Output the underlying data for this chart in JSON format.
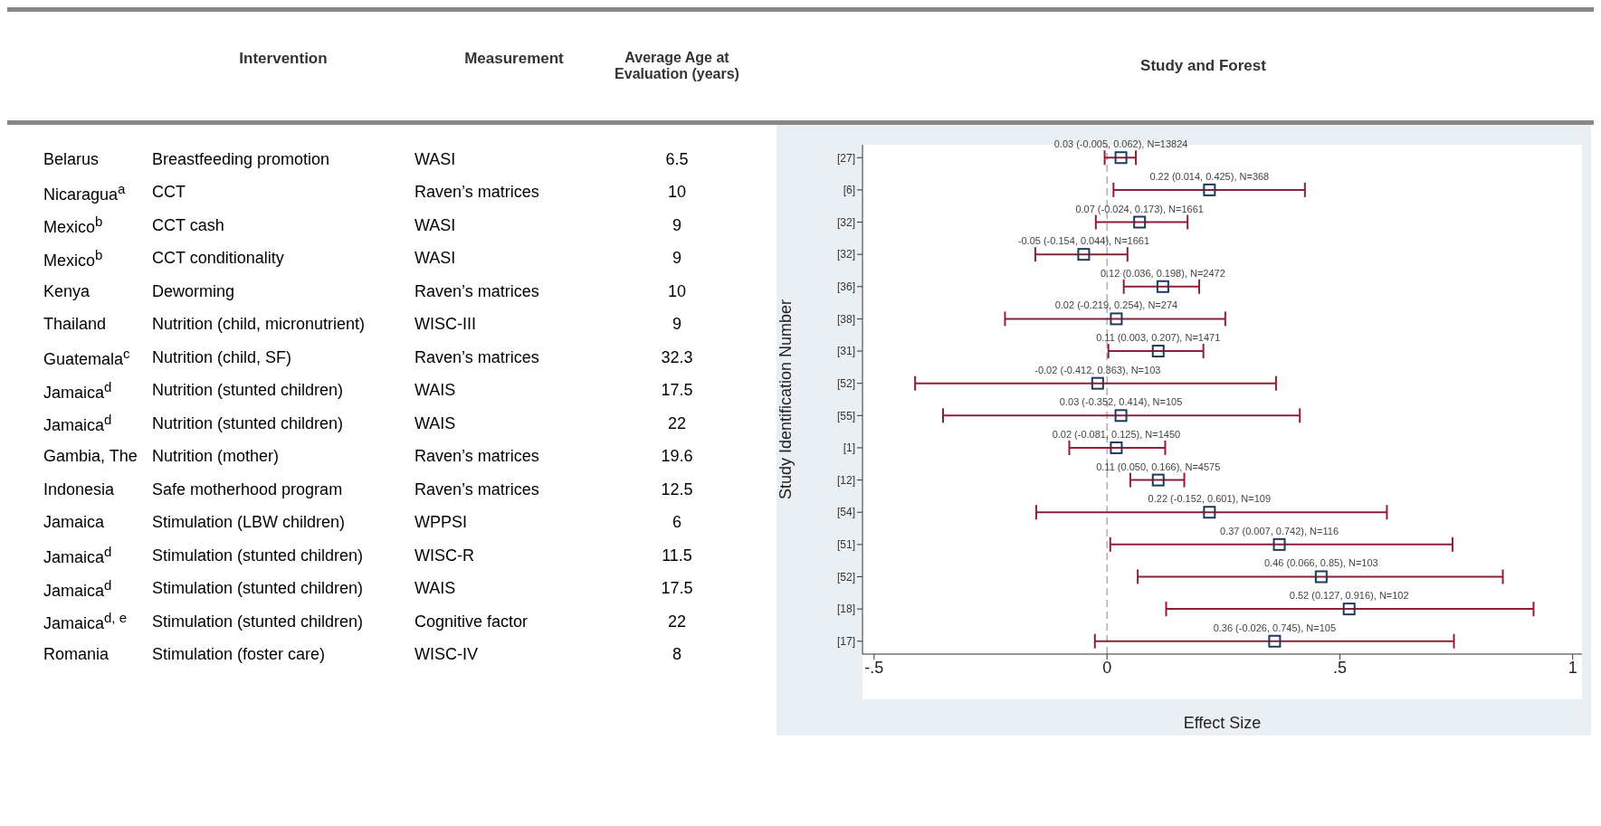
{
  "chart_data": [
    {
      "type": "other",
      "categories": [
        null,
        "Intervention",
        "Measurement",
        "Average Age at Evaluation (years)"
      ],
      "cell_labels": [
        [
          "Belarus",
          "Breastfeeding promotion",
          "WASI",
          "6.5"
        ],
        [
          "Nicaragua$^{a}$",
          "CCT",
          "Raven’s matrices",
          "10"
        ],
        [
          "Mexico$^{b}$",
          "CCT cash",
          "WASI",
          "9"
        ],
        [
          "Mexico$^{b}$",
          "CCT conditionality",
          "WASI",
          "9"
        ],
        [
          "Kenya",
          "Deworming",
          "Raven’s matrices",
          "10"
        ],
        [
          "Thailand",
          "Nutrition (child, micronutrient)",
          "WISC-III",
          "9"
        ],
        [
          "Guatemala$^{c}$",
          "Nutrition (child, SF)",
          "Raven’s matrices",
          "32.3"
        ],
        [
          "Jamaica$^{d}$",
          "Nutrition (stunted children)",
          "WAIS",
          "17.5"
        ],
        [
          "Jamaica$^{d}$",
          "Nutrition (stunted children)",
          "WAIS",
          "22"
        ],
        [
          "Gambia, The",
          "Nutrition (mother)",
          "Raven’s matrices",
          "19.6"
        ],
        [
          "Indonesia",
          "Safe motherhood program",
          "Raven’s matrices",
          "12.5"
        ],
        [
          "Jamaica",
          "Stimulation (LBW children)",
          "WPPSI",
          "6"
        ],
        [
          "Jamaica$^{d}$",
          "Stimulation (stunted children)",
          "WISC-R",
          "11.5"
        ],
        [
          "Jamaica$^{d}$",
          "Stimulation (stunted children)",
          "WAIS",
          "17.5"
        ],
        [
          "Jamaica$^{d, e}$",
          "Stimulation (stunted children)",
          "Cognitive factor",
          "22"
        ],
        [
          "Romania",
          "Stimulation (foster care)",
          "WISC-IV",
          "8"
        ]
      ]
    },
    {
      "type": "scatter",
      "title": "Study and Forest",
      "xlabel": "Effect Size",
      "ylabel": "Study Identification Number",
      "categories": [
        "[27]",
        "[6]",
        "[32]",
        "[32]",
        "[36]",
        "[38]",
        "[31]",
        "[52]",
        "[55]",
        "[1]",
        "[12]",
        "[54]",
        "[51]",
        "[52]",
        "[18]",
        "[17]"
      ],
      "values": [
        0.03,
        0.22,
        0.07,
        -0.05,
        0.12,
        0.02,
        0.11,
        -0.02,
        0.03,
        0.02,
        0.11,
        0.22,
        0.37,
        0.46,
        0.52,
        0.36
      ],
      "errors": [
        [
          -0.005,
          0.062
        ],
        [
          0.014,
          0.425
        ],
        [
          -0.024,
          0.173
        ],
        [
          -0.154,
          0.044
        ],
        [
          0.036,
          0.198
        ],
        [
          -0.219,
          0.254
        ],
        [
          0.003,
          0.207
        ],
        [
          -0.412,
          0.363
        ],
        [
          -0.352,
          0.414
        ],
        [
          -0.081,
          0.125
        ],
        [
          0.05,
          0.166
        ],
        [
          -0.152,
          0.601
        ],
        [
          0.007,
          0.742
        ],
        [
          0.066,
          0.85
        ],
        [
          0.127,
          0.916
        ],
        [
          -0.026,
          0.745
        ]
      ],
      "value_labels": [
        "0.03 (-0.005, 0.062), N=13824",
        "0.22 (0.014, 0.425), N=368",
        "0.07 (-0.024, 0.173), N=1661",
        "-0.05 (-0.154, 0.044), N=1661",
        "0.12 (0.036, 0.198), N=2472",
        "0.02 (-0.219, 0.254), N=274",
        "0.11 (0.003, 0.207), N=1471",
        "-0.02 (-0.412, 0.363), N=103",
        "0.03 (-0.352, 0.414), N=105",
        "0.02 (-0.081, 0.125), N=1450",
        "0.11 (0.050, 0.166), N=4575",
        "0.22 (-0.152, 0.601), N=109",
        "0.37 (0.007, 0.742), N=116",
        "0.46 (0.066, 0.85), N=103",
        "0.52 (0.127, 0.916), N=102",
        "0.36 (-0.026, 0.745), N=105"
      ],
      "color": "#1f3a5c",
      "marker": "square",
      "orientation": "horizontal",
      "grid": false,
      "legend": false,
      "xlim": [
        -0.525,
        1.02
      ],
      "xticks": [
        {
          "value": -0.5,
          "label": "-.5"
        },
        0,
        {
          "value": 0.5,
          "label": ".5"
        },
        1
      ],
      "ref_lines": [
        {
          "axis": "x",
          "value": 0,
          "color": "#888888",
          "line_style": "dashed"
        }
      ]
    }
  ]
}
